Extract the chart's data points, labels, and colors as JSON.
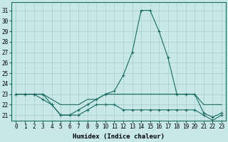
{
  "xlabel": "Humidex (Indice chaleur)",
  "x": [
    0,
    1,
    2,
    3,
    4,
    5,
    6,
    7,
    8,
    9,
    10,
    11,
    12,
    13,
    14,
    15,
    16,
    17,
    18,
    19,
    20,
    21,
    22,
    23
  ],
  "line_top": [
    23,
    23,
    23,
    23,
    22,
    21,
    21,
    21.5,
    22,
    22.5,
    23,
    23.3,
    24.8,
    27,
    31,
    31,
    29,
    26.5,
    23,
    23,
    23,
    21.2,
    20.8,
    21.2
  ],
  "line_mid": [
    23,
    23,
    23,
    23,
    22.5,
    22,
    22,
    22,
    22.5,
    22.5,
    23,
    23,
    23,
    23,
    23,
    23,
    23,
    23,
    23,
    23,
    23,
    22,
    22,
    22
  ],
  "line_bot": [
    23,
    23,
    23,
    22.5,
    22,
    21,
    21,
    21,
    21.5,
    22,
    22,
    22,
    21.5,
    21.5,
    21.5,
    21.5,
    21.5,
    21.5,
    21.5,
    21.5,
    21.5,
    21,
    20.5,
    21
  ],
  "color": "#1a6b5e",
  "bg_color": "#c8e8e8",
  "grid_color": "#a8cccc",
  "yticks": [
    21,
    22,
    23,
    24,
    25,
    26,
    27,
    28,
    29,
    30,
    31
  ],
  "tick_fontsize": 5.5,
  "label_fontsize": 6.5
}
